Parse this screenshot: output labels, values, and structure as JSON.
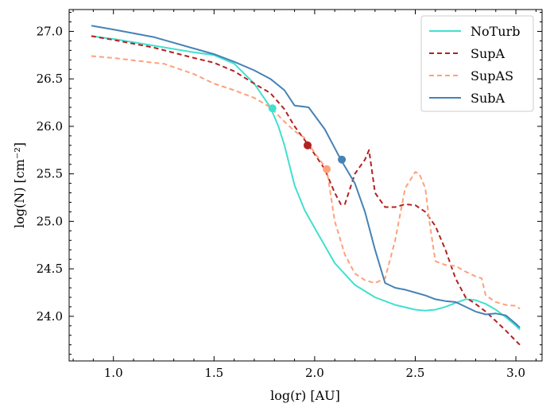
{
  "chart_data": {
    "type": "line",
    "title": "",
    "xlabel": "log(r) [AU]",
    "ylabel": "log(N) [cm⁻²]",
    "xlim": [
      0.78,
      3.13
    ],
    "ylim": [
      23.53,
      27.23
    ],
    "xticks": [
      1.0,
      1.5,
      2.0,
      2.5,
      3.0
    ],
    "xtick_labels": [
      "1.0",
      "1.5",
      "2.0",
      "2.5",
      "3.0"
    ],
    "yticks": [
      24.0,
      24.5,
      25.0,
      25.5,
      26.0,
      26.5,
      27.0
    ],
    "ytick_labels": [
      "24.0",
      "24.5",
      "25.0",
      "25.5",
      "26.0",
      "26.5",
      "27.0"
    ],
    "grid": false,
    "legend_position": "top-right",
    "series": [
      {
        "name": "NoTurb",
        "color": "#40e0d0",
        "dash": "solid",
        "x": [
          0.89,
          1.0,
          1.2,
          1.4,
          1.5,
          1.6,
          1.7,
          1.78,
          1.82,
          1.85,
          1.9,
          1.95,
          2.0,
          2.1,
          2.2,
          2.3,
          2.4,
          2.5,
          2.55,
          2.6,
          2.65,
          2.7,
          2.75,
          2.8,
          2.85,
          2.9,
          2.95,
          3.0,
          3.02
        ],
        "y": [
          26.95,
          26.92,
          26.85,
          26.78,
          26.75,
          26.66,
          26.45,
          26.2,
          26.0,
          25.8,
          25.38,
          25.12,
          24.93,
          24.56,
          24.33,
          24.2,
          24.12,
          24.07,
          24.06,
          24.07,
          24.1,
          24.14,
          24.18,
          24.17,
          24.13,
          24.07,
          23.99,
          23.9,
          23.86
        ]
      },
      {
        "name": "SupA",
        "color": "#b22222",
        "dash": "6,4",
        "x": [
          0.89,
          1.0,
          1.2,
          1.4,
          1.5,
          1.6,
          1.7,
          1.78,
          1.85,
          1.9,
          1.97,
          2.05,
          2.1,
          2.13,
          2.15,
          2.2,
          2.25,
          2.27,
          2.3,
          2.35,
          2.4,
          2.45,
          2.5,
          2.55,
          2.6,
          2.65,
          2.7,
          2.75,
          2.8,
          2.85,
          2.9,
          2.95,
          3.0,
          3.02
        ],
        "y": [
          26.95,
          26.91,
          26.83,
          26.72,
          26.67,
          26.58,
          26.45,
          26.35,
          26.18,
          26.0,
          25.8,
          25.55,
          25.3,
          25.18,
          25.18,
          25.5,
          25.65,
          25.75,
          25.3,
          25.15,
          25.15,
          25.18,
          25.17,
          25.1,
          24.95,
          24.7,
          24.4,
          24.2,
          24.13,
          24.05,
          23.95,
          23.85,
          23.74,
          23.7
        ]
      },
      {
        "name": "SupAS",
        "color": "#ffa07a",
        "dash": "6,4",
        "x": [
          0.89,
          1.0,
          1.2,
          1.25,
          1.4,
          1.5,
          1.6,
          1.7,
          1.78,
          1.85,
          1.9,
          1.95,
          2.0,
          2.06,
          2.1,
          2.15,
          2.2,
          2.25,
          2.3,
          2.35,
          2.4,
          2.45,
          2.5,
          2.52,
          2.55,
          2.57,
          2.6,
          2.65,
          2.7,
          2.75,
          2.8,
          2.83,
          2.85,
          2.9,
          2.95,
          3.0,
          3.02
        ],
        "y": [
          26.74,
          26.72,
          26.67,
          26.66,
          26.55,
          26.45,
          26.38,
          26.3,
          26.2,
          26.05,
          25.95,
          25.88,
          25.72,
          25.55,
          25.0,
          24.65,
          24.45,
          24.38,
          24.35,
          24.4,
          24.8,
          25.35,
          25.52,
          25.5,
          25.35,
          25.0,
          24.58,
          24.54,
          24.53,
          24.47,
          24.42,
          24.4,
          24.22,
          24.15,
          24.12,
          24.11,
          24.08
        ]
      },
      {
        "name": "SubA",
        "color": "#4682b4",
        "dash": "solid",
        "x": [
          0.89,
          1.0,
          1.2,
          1.25,
          1.4,
          1.5,
          1.6,
          1.7,
          1.78,
          1.85,
          1.9,
          1.97,
          2.05,
          2.13,
          2.2,
          2.25,
          2.3,
          2.35,
          2.4,
          2.45,
          2.5,
          2.55,
          2.6,
          2.65,
          2.7,
          2.75,
          2.8,
          2.85,
          2.9,
          2.95,
          3.0,
          3.02
        ],
        "y": [
          27.06,
          27.02,
          26.94,
          26.91,
          26.82,
          26.76,
          26.68,
          26.59,
          26.5,
          26.38,
          26.22,
          26.2,
          25.97,
          25.65,
          25.4,
          25.1,
          24.7,
          24.35,
          24.3,
          24.28,
          24.25,
          24.22,
          24.18,
          24.16,
          24.15,
          24.1,
          24.05,
          24.02,
          24.03,
          24.01,
          23.92,
          23.88
        ]
      }
    ],
    "markers": [
      {
        "series": "NoTurb",
        "x": 1.79,
        "y": 26.19
      },
      {
        "series": "SupA",
        "x": 1.965,
        "y": 25.8
      },
      {
        "series": "SupAS",
        "x": 2.06,
        "y": 25.55
      },
      {
        "series": "SubA",
        "x": 2.135,
        "y": 25.65
      }
    ]
  }
}
